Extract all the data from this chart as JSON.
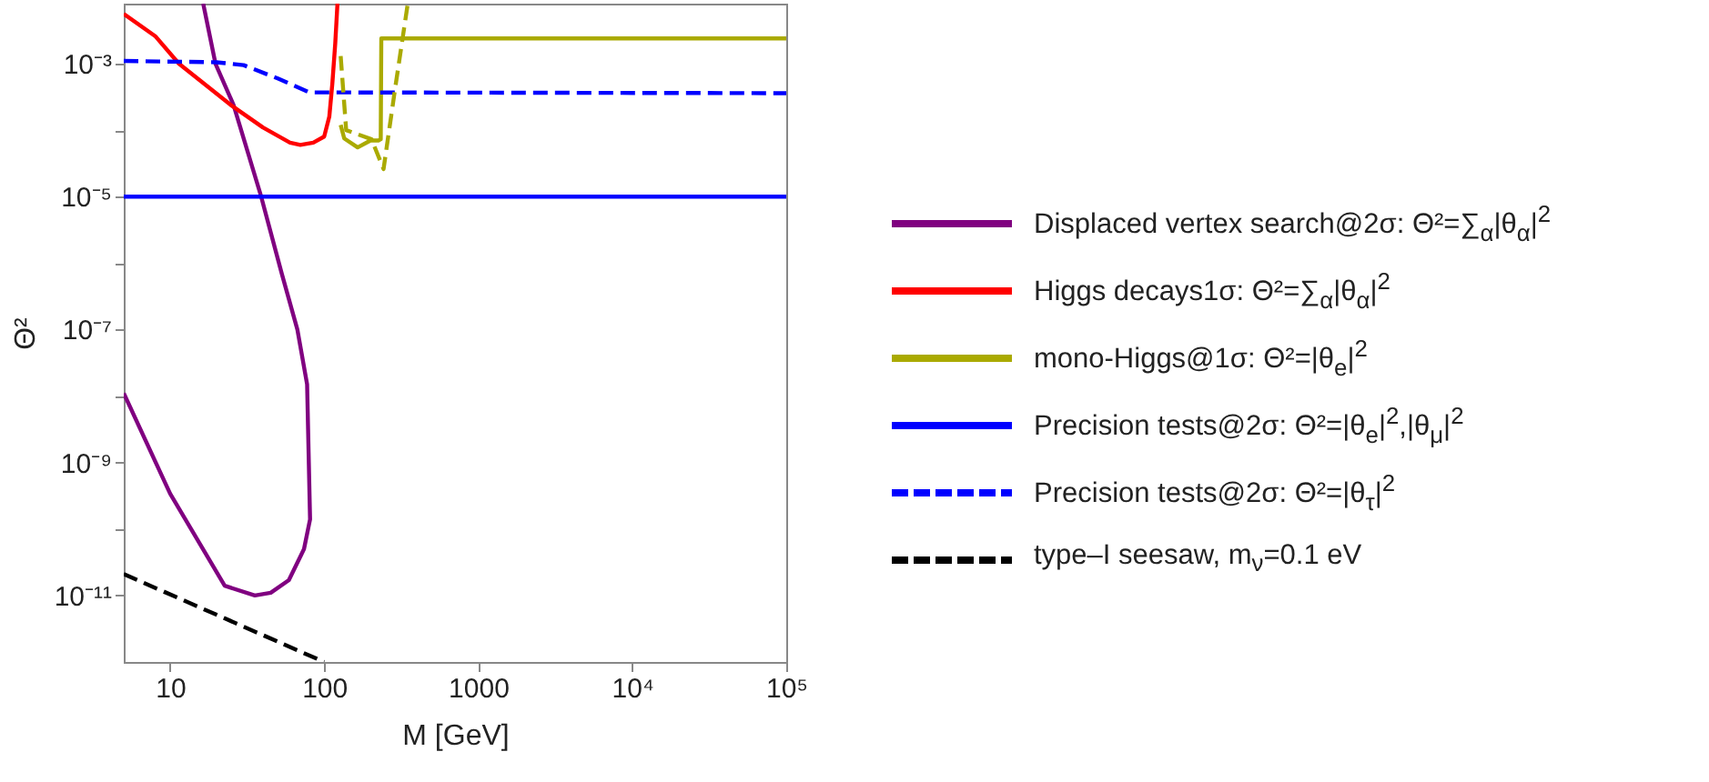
{
  "chart_data": {
    "type": "line",
    "xlabel": "M [GeV]",
    "ylabel": "Θ²",
    "log": "xy",
    "grid": false,
    "legend": "right",
    "marker": "none",
    "xlim": [
      5,
      100000
    ],
    "ylim": [
      1e-12,
      0.008
    ],
    "xticks": [
      10,
      100,
      1000,
      {
        "value": 10000,
        "label": "10⁴"
      },
      {
        "value": 100000,
        "label": "10⁵"
      }
    ],
    "yticks": [
      {
        "value": 1e-11,
        "label": "10⁻¹¹"
      },
      {
        "value": 1e-10,
        "label": null
      },
      {
        "value": 1e-09,
        "label": "10⁻⁹"
      },
      {
        "value": 1e-08,
        "label": null
      },
      {
        "value": 1e-07,
        "label": "10⁻⁷"
      },
      {
        "value": 1e-06,
        "label": null
      },
      {
        "value": 1e-05,
        "label": "10⁻⁵"
      },
      {
        "value": 0.0001,
        "label": null
      },
      {
        "value": 0.001,
        "label": "10⁻³"
      }
    ],
    "series": [
      {
        "name": "Displaced vertex search@2σ: Θ²=∑$_{α}$|θ$_{α}$|$^{2}$",
        "color": "#800080",
        "line_style": "solid",
        "x": [
          16.4,
          19.7,
          25.8,
          39,
          53,
          67,
          77.5,
          81,
          74,
          59,
          45,
          35.5,
          22.6,
          10,
          5
        ],
        "values": [
          0.008,
          0.001,
          0.00024,
          1e-05,
          7e-07,
          1e-07,
          1.5e-08,
          1.4e-10,
          5e-11,
          1.7e-11,
          1.1e-11,
          1e-11,
          1.4e-11,
          3.4e-10,
          1.1e-08
        ]
      },
      {
        "name": "Higgs decays1σ: Θ²=∑$_{α}$|θ$_{α}$|$^{2}$",
        "color": "#ff0000",
        "line_style": "solid",
        "x": [
          5,
          8,
          11.4,
          24.7,
          40,
          60,
          70,
          85,
          100,
          108,
          113,
          118,
          122
        ],
        "values": [
          0.0056,
          0.0026,
          0.001,
          0.00024,
          0.00011,
          6.5e-05,
          6e-05,
          6.5e-05,
          8e-05,
          0.00016,
          0.0005,
          0.002,
          0.008
        ]
      },
      {
        "name": "mono-Higgs@1σ: Θ²=|θ$_{e}$|$^{2}$",
        "color": "#aaaa00",
        "line_style": "solid",
        "x": [
          128,
          135,
          165,
          200,
          225,
          233,
          235,
          100000
        ],
        "values": [
          0.00012,
          7.5e-05,
          5.5e-05,
          7e-05,
          7e-05,
          7.3e-05,
          0.0024,
          0.0024
        ]
      },
      {
        "name": "Precision tests@2σ: Θ²=|θ$_{e}$|$^{2}$,|θ$_{μ}$|$^{2}$",
        "color": "#0000ff",
        "line_style": "solid",
        "x": [
          5,
          100000
        ],
        "values": [
          1e-05,
          1e-05
        ]
      },
      {
        "name": "Precision tests@2σ: Θ²=|θ$_{τ}$|$^{2}$",
        "color": "#0000ff",
        "line_style": "dashed",
        "x": [
          5,
          20,
          30,
          50,
          80,
          100000
        ],
        "values": [
          0.0011,
          0.00105,
          0.00095,
          0.0006,
          0.00037,
          0.00036
        ]
      },
      {
        "name": "type‒I seesaw, m$_{ν}$=0.1 eV",
        "color": "#000000",
        "line_style": "dashed",
        "x": [
          5,
          100
        ],
        "values": [
          2.1e-11,
          1e-12
        ]
      },
      {
        "color": "#aaaa00",
        "line_style": "dashed",
        "x": [
          128,
          139,
          203,
          243,
          290,
          349
        ],
        "values": [
          0.0013,
          0.0001,
          7.3e-05,
          2.6e-05,
          0.00045,
          0.008
        ]
      }
    ]
  }
}
